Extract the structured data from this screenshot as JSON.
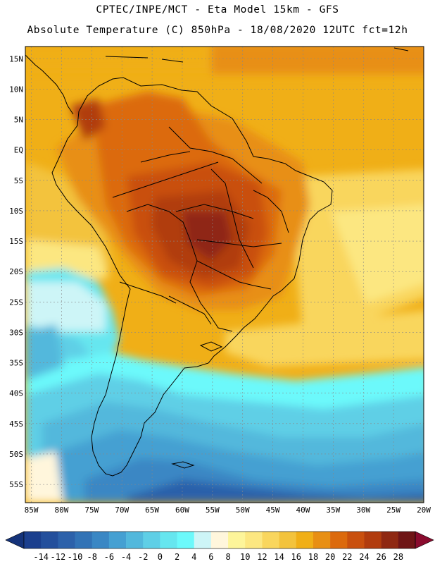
{
  "title": {
    "line1": "CPTEC/INPE/MCT -  Eta Model 15km - GFS",
    "line2": "Absolute Temperature (C) 850hPa - 18/08/2020 12UTC fct=12h"
  },
  "map": {
    "variable": "Absolute Temperature (C)",
    "level": "850hPa",
    "region": "South America",
    "lat_labels": [
      "15N",
      "10N",
      "5N",
      "EQ",
      "5S",
      "10S",
      "15S",
      "20S",
      "25S",
      "30S",
      "35S",
      "40S",
      "45S",
      "50S",
      "55S"
    ],
    "lon_labels": [
      "85W",
      "80W",
      "75W",
      "70W",
      "65W",
      "60W",
      "55W",
      "50W",
      "45W",
      "40W",
      "35W",
      "30W",
      "25W",
      "20W"
    ],
    "lat_values": [
      15,
      10,
      5,
      0,
      -5,
      -10,
      -15,
      -20,
      -25,
      -30,
      -35,
      -40,
      -45,
      -50,
      -55
    ],
    "lon_values": [
      -85,
      -80,
      -75,
      -70,
      -65,
      -60,
      -55,
      -50,
      -45,
      -40,
      -35,
      -30,
      -25,
      -20
    ],
    "lat_range": [
      -58,
      17
    ],
    "lon_range": [
      -86,
      -20
    ]
  },
  "colorbar": {
    "labels": [
      "-14",
      "-12",
      "-10",
      "-8",
      "-6",
      "-4",
      "-2",
      "0",
      "2",
      "4",
      "6",
      "8",
      "10",
      "12",
      "14",
      "16",
      "18",
      "20",
      "22",
      "24",
      "26",
      "28"
    ],
    "colors": [
      "#1b3f8e",
      "#234f9c",
      "#2c61aa",
      "#3273b6",
      "#3a87c4",
      "#45a0d2",
      "#52b8dc",
      "#5fcfe6",
      "#66e6ef",
      "#6cf9fb",
      "#cdf5f7",
      "#fff6dc",
      "#fdf59a",
      "#fce781",
      "#f9d65d",
      "#f3c33c",
      "#f0af17",
      "#e88f13",
      "#dc6a0d",
      "#c9500e",
      "#b13c0e",
      "#8f2812",
      "#6f1516"
    ],
    "under_color": "#15337a",
    "over_color": "#8a0b2e"
  }
}
